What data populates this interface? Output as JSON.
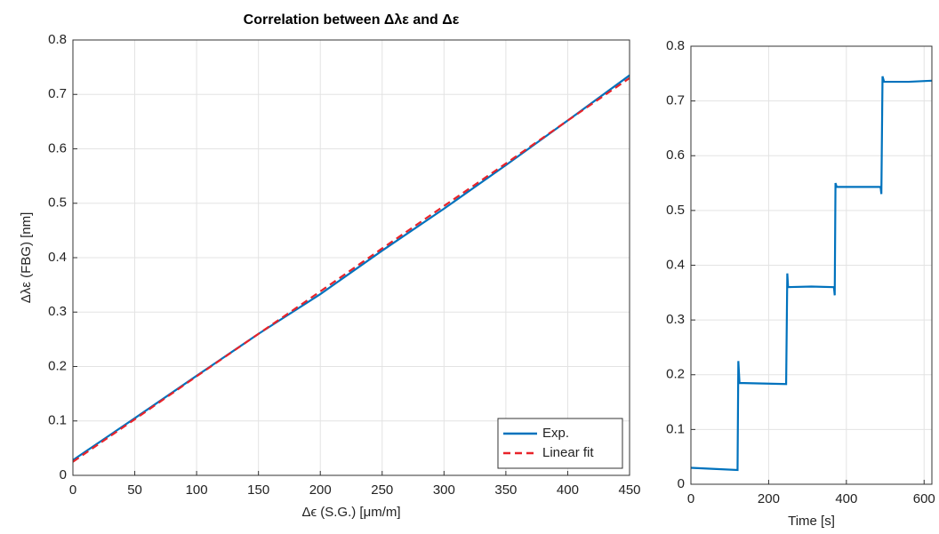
{
  "chart_data": [
    {
      "type": "line",
      "title": "Correlation between Δλε and Δε",
      "xlabel": "Δϵ (S.G.) [μm/m]",
      "ylabel": "Δλε (FBG) [nm]",
      "x": [
        0,
        50,
        100,
        150,
        200,
        250,
        300,
        350,
        400,
        450
      ],
      "series": [
        {
          "name": "Exp.",
          "color": "#0072bd",
          "linestyle": "solid",
          "values": [
            0.028,
            0.105,
            0.183,
            0.26,
            0.333,
            0.413,
            0.49,
            0.57,
            0.652,
            0.735
          ]
        },
        {
          "name": "Linear fit",
          "color": "#e8232a",
          "linestyle": "dashed",
          "values": [
            0.025,
            0.103,
            0.182,
            0.26,
            0.338,
            0.417,
            0.495,
            0.573,
            0.652,
            0.73
          ]
        }
      ],
      "xlim": [
        0,
        450
      ],
      "xticks": [
        0,
        50,
        100,
        150,
        200,
        250,
        300,
        350,
        400,
        450
      ],
      "ylim": [
        0,
        0.8
      ],
      "yticks": [
        0,
        0.1,
        0.2,
        0.3,
        0.4,
        0.5,
        0.6,
        0.7,
        0.8
      ],
      "grid": true,
      "legend": "lower right"
    },
    {
      "type": "line",
      "xlabel": "Time [s]",
      "x": [
        0,
        60,
        120,
        122,
        125,
        185,
        245,
        248,
        250,
        310,
        368,
        370,
        372,
        375,
        430,
        488,
        490,
        493,
        497,
        560,
        620
      ],
      "series": [
        {
          "color": "#0072bd",
          "linestyle": "solid",
          "values": [
            0.03,
            0.028,
            0.026,
            0.225,
            0.185,
            0.184,
            0.183,
            0.385,
            0.36,
            0.361,
            0.36,
            0.345,
            0.55,
            0.543,
            0.543,
            0.543,
            0.53,
            0.745,
            0.735,
            0.735,
            0.737
          ]
        }
      ],
      "xlim": [
        0,
        620
      ],
      "xticks": [
        0,
        200,
        400,
        600
      ],
      "ylim": [
        0,
        0.8
      ],
      "yticks": [
        0,
        0.1,
        0.2,
        0.3,
        0.4,
        0.5,
        0.6,
        0.7,
        0.8
      ],
      "grid": true
    }
  ]
}
